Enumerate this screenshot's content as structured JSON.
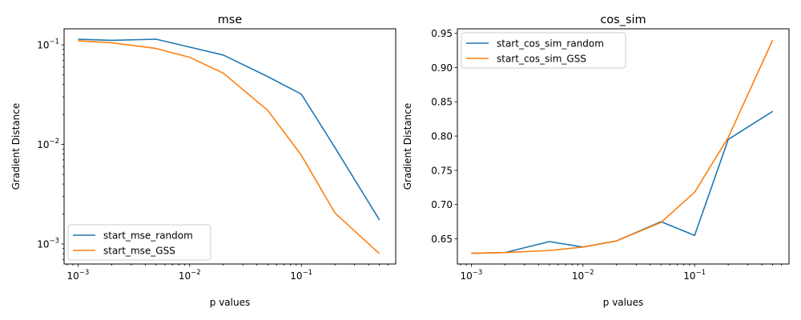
{
  "chart_data": [
    {
      "type": "line",
      "title": "mse",
      "xlabel": "p values",
      "ylabel": "Gradient Distance",
      "xscale": "log",
      "yscale": "log",
      "xlim": [
        0.00075,
        0.7
      ],
      "ylim": [
        0.00063,
        0.145
      ],
      "xticks": [
        0.001,
        0.01,
        0.1
      ],
      "xtick_labels": [
        [
          "10",
          "−3"
        ],
        [
          "10",
          "−2"
        ],
        [
          "10",
          "−1"
        ]
      ],
      "yticks": [
        0.001,
        0.01,
        0.1
      ],
      "ytick_labels": [
        [
          "10",
          "−3"
        ],
        [
          "10",
          "−2"
        ],
        [
          "10",
          "−1"
        ]
      ],
      "legend": "lower-left",
      "grid": false,
      "x": [
        0.001,
        0.002,
        0.005,
        0.01,
        0.02,
        0.05,
        0.1,
        0.2,
        0.5
      ],
      "series": [
        {
          "name": "start_mse_random",
          "color": "#1f77b4",
          "values": [
            0.114,
            0.111,
            0.114,
            0.095,
            0.079,
            0.048,
            0.032,
            0.0093,
            0.00175
          ]
        },
        {
          "name": "start_mse_GSS",
          "color": "#ff7f0e",
          "values": [
            0.11,
            0.105,
            0.092,
            0.075,
            0.052,
            0.022,
            0.0078,
            0.00205,
            0.0008
          ]
        }
      ]
    },
    {
      "type": "line",
      "title": "cos_sim",
      "xlabel": "p values",
      "ylabel": "Gradient Distance",
      "xscale": "log",
      "yscale": "linear",
      "xlim": [
        0.00075,
        0.7
      ],
      "ylim": [
        0.6133,
        0.9565
      ],
      "xticks": [
        0.001,
        0.01,
        0.1
      ],
      "xtick_labels": [
        [
          "10",
          "−3"
        ],
        [
          "10",
          "−2"
        ],
        [
          "10",
          "−1"
        ]
      ],
      "yticks": [
        0.65,
        0.7,
        0.75,
        0.8,
        0.85,
        0.9,
        0.95
      ],
      "ytick_labels": [
        [
          "0.65"
        ],
        [
          "0.70"
        ],
        [
          "0.75"
        ],
        [
          "0.80"
        ],
        [
          "0.85"
        ],
        [
          "0.90"
        ],
        [
          "0.95"
        ]
      ],
      "legend": "upper-left",
      "grid": false,
      "x": [
        0.001,
        0.002,
        0.005,
        0.01,
        0.02,
        0.05,
        0.1,
        0.2,
        0.5
      ],
      "series": [
        {
          "name": "start_cos_sim_random",
          "color": "#1f77b4",
          "values": [
            0.629,
            0.63,
            0.646,
            0.638,
            0.647,
            0.675,
            0.655,
            0.795,
            0.836
          ]
        },
        {
          "name": "start_cos_sim_GSS",
          "color": "#ff7f0e",
          "values": [
            0.629,
            0.63,
            0.633,
            0.638,
            0.647,
            0.674,
            0.718,
            0.798,
            0.94
          ]
        }
      ]
    }
  ]
}
